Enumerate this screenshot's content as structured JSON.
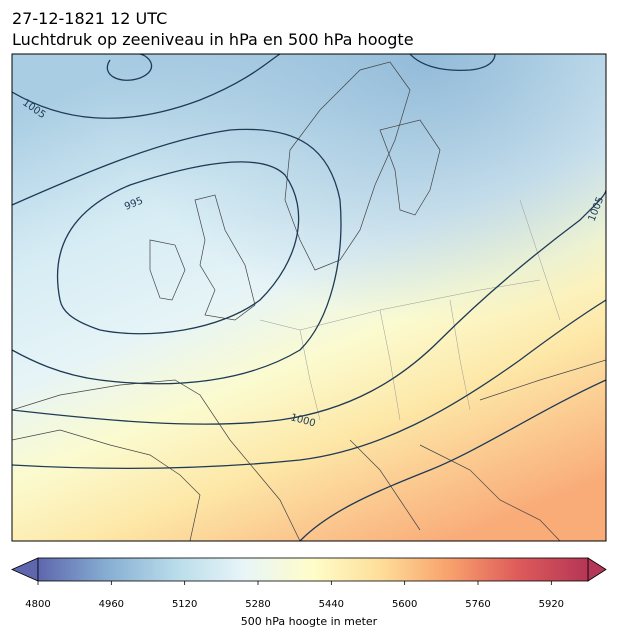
{
  "header": {
    "date": "27-12-1821 12 UTC",
    "title": "Luchtdruk op zeeniveau in hPa en 500 hPa hoogte"
  },
  "map": {
    "isobar_labels": [
      "1005",
      "995",
      "1000",
      "1005"
    ]
  },
  "colorbar": {
    "label": "500 hPa hoogte in meter",
    "lim": [
      4800,
      6000
    ],
    "ticks": [
      4800,
      4960,
      5120,
      5280,
      5440,
      5600,
      5760,
      5920
    ],
    "colors": [
      "#5e66ad",
      "#86aed2",
      "#b9dcea",
      "#e8f5f8",
      "#fffdc9",
      "#fedd98",
      "#f8a06c",
      "#dd5a5a",
      "#b53656"
    ]
  }
}
